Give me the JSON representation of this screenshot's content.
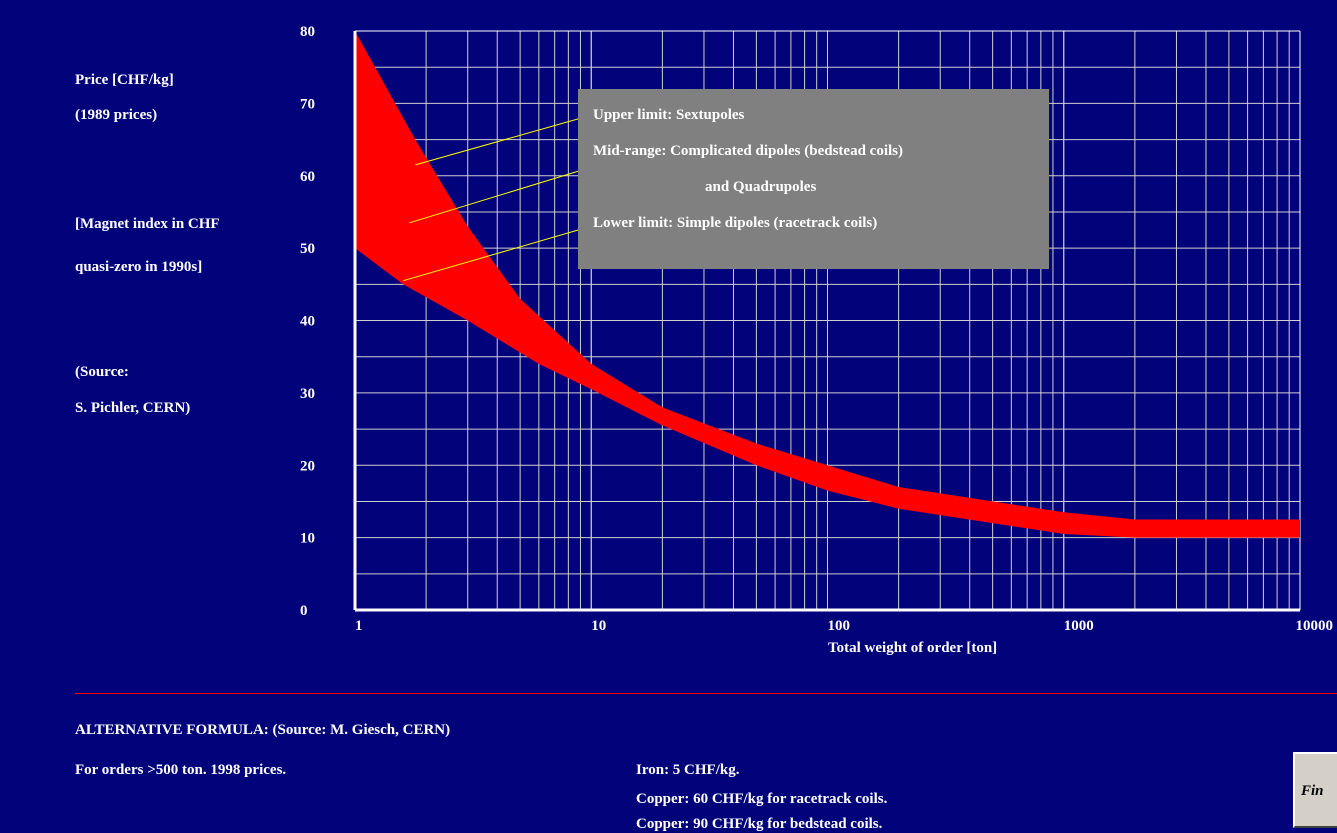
{
  "side_labels": {
    "ylabel_1": "Price [CHF/kg]",
    "ylabel_2": "(1989 prices)",
    "note_1": "[Magnet index in CHF",
    "note_2": "quasi-zero in 1990s]",
    "source_1": "(Source:",
    "source_2": " S. Pichler, CERN)"
  },
  "callouts": {
    "upper": "Upper limit: Sextupoles",
    "mid": "Mid-range: Complicated dipoles (bedstead coils)",
    "mid_2": "and Quadrupoles",
    "lower": "Lower limit: Simple dipoles (racetrack coils)"
  },
  "chart_data": {
    "type": "area",
    "x_scale": "log",
    "xlim": [
      1,
      10000
    ],
    "ylim": [
      0,
      80
    ],
    "xlabel": "Total weight of order [ton]",
    "ylabel": "Price [CHF/kg]",
    "x_ticks": [
      "1",
      "10",
      "100",
      "1000",
      "10000"
    ],
    "y_ticks": [
      "0",
      "10",
      "20",
      "30",
      "40",
      "50",
      "60",
      "70",
      "80"
    ],
    "grid": true,
    "band_color": "#ff0000",
    "upper": {
      "x": [
        1,
        1.8,
        3,
        5,
        10,
        20,
        50,
        100,
        200,
        500,
        1000,
        2000,
        5000,
        10000
      ],
      "y": [
        80,
        65,
        53,
        43,
        34,
        28,
        23,
        20,
        17,
        15,
        13.5,
        12.5,
        12.5,
        12.5
      ]
    },
    "lower": {
      "x": [
        1,
        1.6,
        3,
        6,
        10,
        20,
        50,
        100,
        200,
        500,
        1000,
        2000,
        5000,
        10000
      ],
      "y": [
        50,
        45,
        40,
        34,
        30.5,
        25.5,
        20,
        16.5,
        14,
        12,
        10.5,
        10,
        10,
        10
      ]
    }
  },
  "bottom": {
    "formula": "ALTERNATIVE FORMULA:  (Source: M. Giesch, CERN)",
    "orders": "For orders >500 ton.   1998 prices.",
    "iron": "Iron:   5 CHF/kg.",
    "copper_race": "Copper:   60 CHF/kg  for racetrack coils.",
    "copper_bed": "Copper:   90 CHF/kg  for bedstead coils."
  },
  "button": {
    "label": "Fin"
  }
}
